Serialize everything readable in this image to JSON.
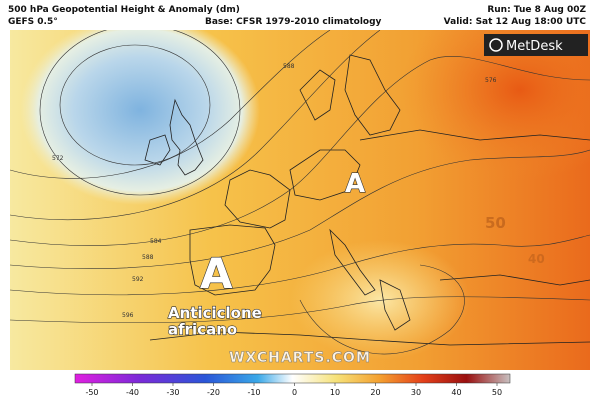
{
  "header": {
    "title": "500 hPa Geopotential Height & Anomaly (dm)",
    "model": "GEFS 0.5°",
    "base": "Base: CFSR 1979-2010 climatology",
    "run": "Run: Tue 8 Aug 00Z",
    "valid": "Valid: Sat 12 Aug 18:00 UTC"
  },
  "logo": "MetDesk",
  "map": {
    "labels": [
      "A",
      "A",
      "Anticiclone africano"
    ],
    "watermark": "WXCHARTS.COM",
    "overlay": [
      "50",
      "40"
    ],
    "contour_labels": [
      "572",
      "576",
      "588",
      "584",
      "588",
      "592",
      "596"
    ]
  },
  "colorbar": {
    "ticks": [
      -50,
      -40,
      -30,
      -20,
      -10,
      0,
      10,
      20,
      30,
      40,
      50
    ]
  }
}
